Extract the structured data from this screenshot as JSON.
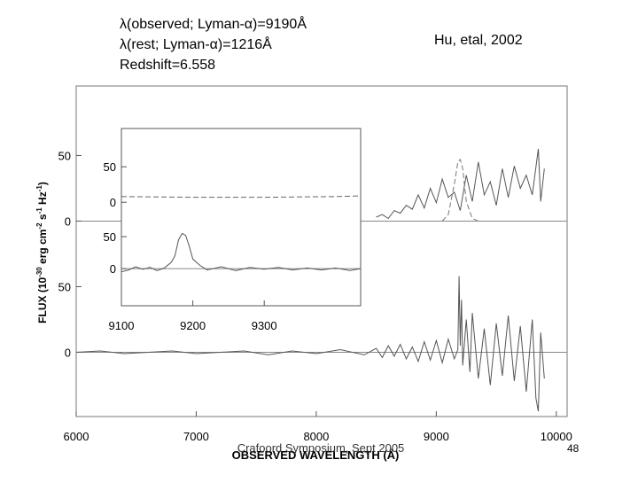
{
  "header": {
    "lines": [
      "λ(observed; Lyman-α)=9190Å",
      "λ(rest; Lyman-α)=1216Å",
      "Redshift=6.558"
    ],
    "citation": "Hu,  etal, 2002"
  },
  "footer": {
    "text": "Crafoord Symposium, Sept 2005",
    "page": "48"
  },
  "chart_data": [
    {
      "type": "line",
      "xlabel": "OBSERVED WAVELENGTH (Å)",
      "ylabel_parts": [
        "FLUX (10",
        "-30",
        " erg cm",
        "-2",
        " s",
        "-1",
        " Hz",
        "-1",
        ")"
      ],
      "xlim": [
        6000,
        10090
      ],
      "ylim": [
        -49,
        203
      ],
      "xticks": [
        6000,
        7000,
        8000,
        9000,
        10000
      ],
      "yticks": [
        0,
        50
      ],
      "zero_line": true,
      "series": [
        {
          "color": "#555555",
          "x": [
            6000,
            6200,
            6400,
            6600,
            6800,
            7000,
            7200,
            7400,
            7600,
            7800,
            8000,
            8200,
            8400,
            8500,
            8550,
            8600,
            8650,
            8700,
            8750,
            8800,
            8850,
            8900,
            8950,
            9000,
            9050,
            9100,
            9150,
            9180,
            9190,
            9200,
            9210,
            9220,
            9250,
            9280,
            9300,
            9350,
            9400,
            9450,
            9500,
            9550,
            9600,
            9650,
            9700,
            9750,
            9800,
            9830,
            9850,
            9870,
            9900
          ],
          "values": [
            0,
            1,
            -1,
            0,
            1,
            -1,
            0,
            1,
            -2,
            1,
            -1,
            2,
            -2,
            3,
            -4,
            5,
            -3,
            6,
            -5,
            4,
            -7,
            8,
            -6,
            9,
            -8,
            10,
            -5,
            2,
            58,
            5,
            40,
            -10,
            25,
            -15,
            30,
            -20,
            18,
            -25,
            22,
            -18,
            28,
            -22,
            20,
            -30,
            25,
            -35,
            -45,
            15,
            -20
          ]
        }
      ]
    },
    {
      "type": "line",
      "xlim": [
        6000,
        10090
      ],
      "ylim": [
        -149,
        103
      ],
      "yticks": [
        0,
        50
      ],
      "zero_line": true,
      "series": [
        {
          "color": "#555555",
          "x": [
            8500,
            8550,
            8600,
            8650,
            8700,
            8750,
            8800,
            8850,
            8900,
            8950,
            9000,
            9050,
            9100,
            9150,
            9200,
            9250,
            9300,
            9350,
            9400,
            9450,
            9500,
            9550,
            9600,
            9650,
            9700,
            9750,
            9800,
            9850,
            9870,
            9900
          ],
          "values": [
            3,
            5,
            2,
            8,
            6,
            12,
            9,
            20,
            10,
            25,
            14,
            32,
            18,
            22,
            8,
            35,
            15,
            45,
            20,
            30,
            12,
            40,
            18,
            42,
            25,
            35,
            20,
            55,
            15,
            40
          ]
        },
        {
          "color": "#777777",
          "dash": true,
          "x": [
            9050,
            9100,
            9150,
            9180,
            9200,
            9220,
            9250,
            9300,
            9350
          ],
          "values": [
            0,
            5,
            28,
            45,
            47,
            40,
            15,
            2,
            0
          ]
        }
      ]
    },
    {
      "type": "line",
      "xlim": [
        9100,
        9435
      ],
      "ylim": [
        -146,
        104
      ],
      "yticks": [
        0,
        50
      ],
      "series": [
        {
          "color": "#666666",
          "dash": true,
          "x": [
            9100,
            9200,
            9300,
            9400,
            9435
          ],
          "values": [
            8,
            7,
            7,
            8,
            9
          ]
        }
      ]
    },
    {
      "type": "line",
      "xlim": [
        9100,
        9435
      ],
      "ylim": [
        -58,
        219
      ],
      "xticks": [
        9100,
        9200,
        9300
      ],
      "yticks": [
        0,
        50
      ],
      "zero_line": true,
      "series": [
        {
          "color": "#555555",
          "x": [
            9100,
            9110,
            9120,
            9130,
            9140,
            9150,
            9160,
            9170,
            9175,
            9180,
            9185,
            9190,
            9195,
            9200,
            9210,
            9220,
            9240,
            9260,
            9280,
            9300,
            9320,
            9340,
            9360,
            9380,
            9400,
            9420,
            9435
          ],
          "values": [
            -5,
            -2,
            3,
            -1,
            2,
            -3,
            1,
            10,
            20,
            45,
            55,
            52,
            35,
            15,
            5,
            -2,
            3,
            -3,
            2,
            -1,
            2,
            -2,
            1,
            -2,
            1,
            -3,
            0
          ]
        }
      ]
    }
  ]
}
